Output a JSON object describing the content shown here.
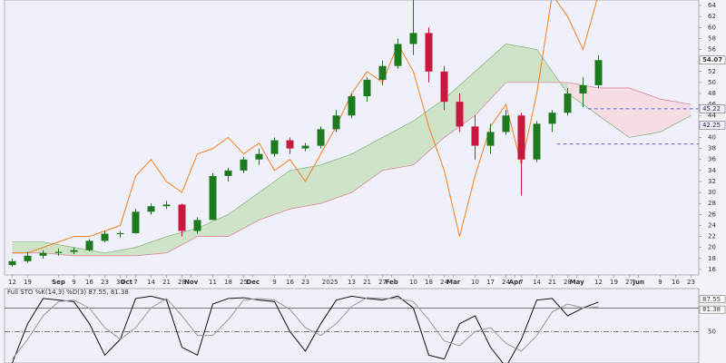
{
  "chart_data": [
    {
      "type": "candlestick",
      "xlim": [
        -0.5,
        44.5
      ],
      "xticks": [
        {
          "value": 0,
          "label": "12"
        },
        {
          "value": 1,
          "label": "19"
        },
        {
          "value": 3,
          "label": "Sep"
        },
        {
          "value": 4,
          "label": "9"
        },
        {
          "value": 5,
          "label": "16"
        },
        {
          "value": 6,
          "label": "23"
        },
        {
          "value": 7,
          "label": "30"
        },
        {
          "value": 7.4,
          "label": "Oct"
        },
        {
          "value": 8,
          "label": "7"
        },
        {
          "value": 9,
          "label": "14"
        },
        {
          "value": 10,
          "label": "21"
        },
        {
          "value": 11,
          "label": "28"
        },
        {
          "value": 11.6,
          "label": "Nov"
        },
        {
          "value": 13,
          "label": "11"
        },
        {
          "value": 14,
          "label": "18"
        },
        {
          "value": 15,
          "label": "25"
        },
        {
          "value": 15.6,
          "label": "Dec"
        },
        {
          "value": 17,
          "label": "9"
        },
        {
          "value": 18,
          "label": "16"
        },
        {
          "value": 19,
          "label": "23"
        },
        {
          "value": 20.6,
          "label": "2025"
        },
        {
          "value": 22,
          "label": "13"
        },
        {
          "value": 23,
          "label": "21"
        },
        {
          "value": 24,
          "label": "27"
        },
        {
          "value": 24.6,
          "label": "Feb"
        },
        {
          "value": 26,
          "label": "10"
        },
        {
          "value": 27,
          "label": "18"
        },
        {
          "value": 28,
          "label": "24"
        },
        {
          "value": 28.6,
          "label": "Mar"
        },
        {
          "value": 30,
          "label": "10"
        },
        {
          "value": 31,
          "label": "17"
        },
        {
          "value": 32,
          "label": "24"
        },
        {
          "value": 32.6,
          "label": "Apr"
        },
        {
          "value": 33,
          "label": "7"
        },
        {
          "value": 34,
          "label": "14"
        },
        {
          "value": 35,
          "label": "21"
        },
        {
          "value": 36,
          "label": "28"
        },
        {
          "value": 36.6,
          "label": "May"
        },
        {
          "value": 38,
          "label": "12"
        },
        {
          "value": 39,
          "label": "19"
        },
        {
          "value": 40,
          "label": "27"
        },
        {
          "value": 40.6,
          "label": "Jun"
        },
        {
          "value": 42,
          "label": "9"
        },
        {
          "value": 43,
          "label": "16"
        },
        {
          "value": 44,
          "label": "23"
        }
      ],
      "ylim": [
        15,
        65
      ],
      "yticks": [
        16,
        18,
        20,
        22,
        24,
        26,
        28,
        30,
        32,
        34,
        36,
        38,
        40,
        42,
        44,
        46,
        48,
        50,
        52,
        54,
        56,
        58,
        60,
        62,
        64
      ],
      "up_color": "#1e7a1e",
      "down_color": "#c8183c",
      "x": [
        0,
        1,
        2,
        3,
        4,
        5,
        6,
        7,
        8,
        9,
        10,
        11,
        12,
        13,
        14,
        15,
        16,
        17,
        18,
        19,
        20,
        21,
        22,
        23,
        24,
        25,
        26,
        27,
        28,
        29,
        30,
        31,
        32,
        33,
        34,
        35,
        36,
        37,
        38
      ],
      "open": [
        16.8,
        17.5,
        18.5,
        19,
        19.2,
        19.5,
        21.2,
        22.5,
        22.6,
        26.5,
        27.5,
        27.8,
        23,
        25,
        33,
        34,
        36,
        37,
        39.5,
        38,
        38.5,
        41.5,
        44,
        47.5,
        50.5,
        53,
        57,
        59,
        52,
        46.5,
        42,
        38.5,
        41,
        44,
        36,
        42.5,
        44.5,
        48,
        49.5
      ],
      "high": [
        18,
        19.2,
        19.5,
        19.8,
        20,
        21.5,
        23,
        23,
        27,
        28,
        28.5,
        28,
        25.5,
        33.5,
        34.5,
        36.5,
        38,
        40,
        40,
        39,
        42,
        45,
        48,
        51,
        54,
        58,
        65,
        60,
        53,
        48,
        44,
        42.5,
        45,
        44.5,
        43,
        45,
        49,
        51,
        55
      ],
      "low": [
        16.5,
        17.2,
        18,
        18.5,
        18.8,
        19.3,
        21,
        21.8,
        22.5,
        26,
        27,
        22,
        22.5,
        25,
        32,
        33.5,
        35,
        36.5,
        37,
        37.5,
        38,
        41,
        43.5,
        46.5,
        49.5,
        52.5,
        55,
        50,
        45,
        41,
        36,
        37,
        40.5,
        29.5,
        35.5,
        41,
        44,
        45.5,
        49
      ],
      "close": [
        17.5,
        18.5,
        19,
        19.2,
        19.5,
        21.2,
        22.5,
        22.6,
        26.5,
        27.5,
        27.8,
        23,
        25,
        33,
        34,
        36,
        37,
        39.5,
        38,
        38.5,
        41.5,
        44,
        47.5,
        50.5,
        53,
        57,
        59,
        52,
        46.5,
        42,
        38.5,
        41,
        44,
        36,
        42.5,
        44.5,
        48,
        49.5,
        54.07
      ],
      "overlay": {
        "color": "#f08020",
        "values": [
          19,
          19,
          20,
          21,
          22,
          22,
          23,
          24,
          33,
          36,
          32,
          30,
          37,
          38,
          40,
          37,
          39,
          34,
          36,
          32,
          37,
          42,
          48,
          52,
          50,
          57,
          52,
          42,
          34,
          22,
          33,
          42,
          46,
          35,
          48,
          66,
          62,
          56,
          66
        ]
      },
      "cloud": {
        "x": [
          0,
          2,
          4,
          6,
          8,
          10,
          12,
          14,
          16,
          18,
          20,
          22,
          24,
          26,
          28,
          30,
          32,
          34,
          36,
          38,
          40,
          42,
          44
        ],
        "span_a": [
          21,
          21,
          20,
          19,
          20,
          22,
          23.5,
          26,
          30,
          34,
          35,
          37,
          40,
          43,
          47,
          52,
          57,
          56,
          48,
          44,
          40,
          41,
          44
        ],
        "span_b": [
          19,
          19,
          18.5,
          18.5,
          18.5,
          19,
          22,
          22,
          25,
          27,
          28,
          30,
          34,
          35,
          40,
          44,
          50,
          50,
          50,
          49,
          49,
          47,
          46
        ],
        "up_color": "#cfe3c8",
        "down_color": "#f6dde3",
        "a_color": "#8fb88a",
        "b_color": "#d98a9a"
      },
      "dashed_levels": [
        {
          "value": 45.22,
          "from": 37.3
        },
        {
          "value": 38.8,
          "from": 35.3
        }
      ],
      "level_color": "#3344cc",
      "price_labels": [
        54.07,
        45.22,
        42.25
      ]
    },
    {
      "type": "line",
      "label": "Full STO %K(14,3) %D(3) 87.55, 81.38",
      "ylim": [
        10,
        100
      ],
      "yticks": [
        50
      ],
      "overbought": 80,
      "last_values": [
        87.55,
        81.38
      ],
      "series": [
        {
          "color": "#111111",
          "values": [
            10,
            60,
            92,
            90,
            88,
            60,
            20,
            40,
            92,
            95,
            90,
            30,
            20,
            85,
            92,
            93,
            90,
            88,
            50,
            25,
            60,
            90,
            95,
            92,
            90,
            95,
            80,
            20,
            15,
            60,
            70,
            30,
            5,
            40,
            90,
            92,
            70,
            80,
            87.55
          ]
        },
        {
          "color": "#999999",
          "values": [
            15,
            40,
            70,
            88,
            90,
            80,
            55,
            40,
            55,
            80,
            92,
            70,
            45,
            45,
            65,
            90,
            92,
            90,
            78,
            55,
            45,
            60,
            82,
            93,
            92,
            92,
            88,
            65,
            38,
            32,
            50,
            55,
            35,
            25,
            45,
            75,
            85,
            80,
            81.38
          ]
        }
      ]
    }
  ]
}
